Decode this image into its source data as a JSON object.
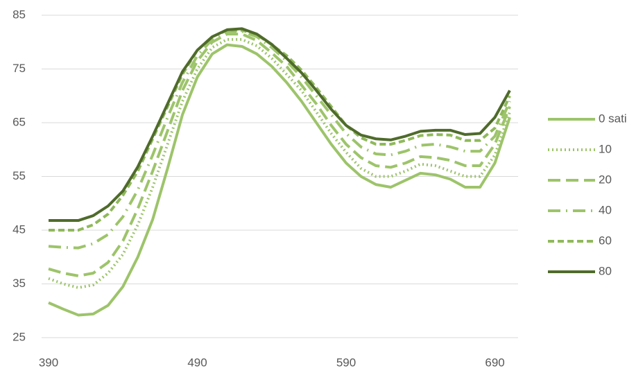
{
  "chart_data": {
    "type": "line",
    "categories": [
      "390",
      null,
      null,
      null,
      null,
      null,
      null,
      null,
      null,
      null,
      "490",
      null,
      null,
      null,
      null,
      null,
      null,
      null,
      null,
      null,
      "590",
      null,
      null,
      null,
      null,
      null,
      null,
      null,
      null,
      null,
      "690",
      null
    ],
    "ylim": [
      25,
      85
    ],
    "yticks": [
      25,
      35,
      45,
      55,
      65,
      75,
      85
    ],
    "grid": true,
    "legend": "right",
    "series": [
      {
        "name": "0 sati",
        "color": "#9dc46a",
        "dash": "solid",
        "values": [
          31.5,
          30.3,
          29.2,
          29.4,
          31,
          34.5,
          40,
          47,
          56.5,
          66.5,
          73.5,
          77.8,
          79.5,
          79.2,
          77.8,
          75.5,
          72.5,
          69,
          65,
          61,
          57.5,
          55,
          53.5,
          53,
          54.3,
          55.6,
          55.3,
          54.5,
          53,
          53,
          57.5,
          66
        ]
      },
      {
        "name": "10",
        "color": "#9dc46a",
        "dash": "dot",
        "values": [
          36,
          35,
          34.3,
          34.8,
          37,
          40.5,
          46,
          53,
          61,
          69,
          75,
          79,
          80.5,
          80.5,
          79.3,
          77,
          74,
          71,
          67,
          63,
          59.5,
          56.5,
          55,
          55,
          56,
          57.3,
          57,
          56,
          55,
          55,
          59,
          67
        ]
      },
      {
        "name": "20",
        "color": "#9dc46a",
        "dash": "longdash",
        "values": [
          37.8,
          37,
          36.5,
          37,
          39,
          43,
          49,
          56,
          63.5,
          71,
          76.5,
          80,
          81.5,
          81.5,
          80.3,
          78,
          75.5,
          72,
          68.5,
          64.5,
          61,
          58.5,
          57,
          56.7,
          57.5,
          58.7,
          58.5,
          58,
          57,
          57,
          61,
          68
        ]
      },
      {
        "name": "40",
        "color": "#9dc46a",
        "dash": "longdashdot",
        "values": [
          42,
          41.8,
          41.7,
          42.5,
          44.2,
          47.5,
          52.5,
          59,
          66,
          72.5,
          77.5,
          80.5,
          82,
          82,
          81,
          79,
          76.5,
          73.5,
          70,
          66.5,
          63,
          60.5,
          59.2,
          59,
          59.7,
          60.8,
          61,
          60.5,
          59.7,
          59.7,
          62.5,
          69
        ]
      },
      {
        "name": "60",
        "color": "#8fb95a",
        "dash": "dash",
        "values": [
          45,
          45,
          45,
          46,
          48,
          51.5,
          56,
          62,
          68,
          74,
          78.5,
          81,
          82.2,
          82.2,
          81.4,
          79.5,
          77.5,
          74.8,
          71.5,
          68,
          64.5,
          62.2,
          61,
          61,
          61.7,
          62.6,
          62.8,
          62.7,
          61.7,
          61.7,
          64,
          70
        ]
      },
      {
        "name": "80",
        "color": "#4f6b2b",
        "dash": "solid",
        "values": [
          46.8,
          46.8,
          46.8,
          47.7,
          49.5,
          52.3,
          56.8,
          62.5,
          68.5,
          74.5,
          78.5,
          81,
          82.3,
          82.5,
          81.5,
          79.6,
          77,
          74.3,
          71,
          67.5,
          64.5,
          62.7,
          62,
          61.8,
          62.5,
          63.4,
          63.6,
          63.6,
          62.8,
          63,
          66,
          71
        ]
      }
    ]
  }
}
